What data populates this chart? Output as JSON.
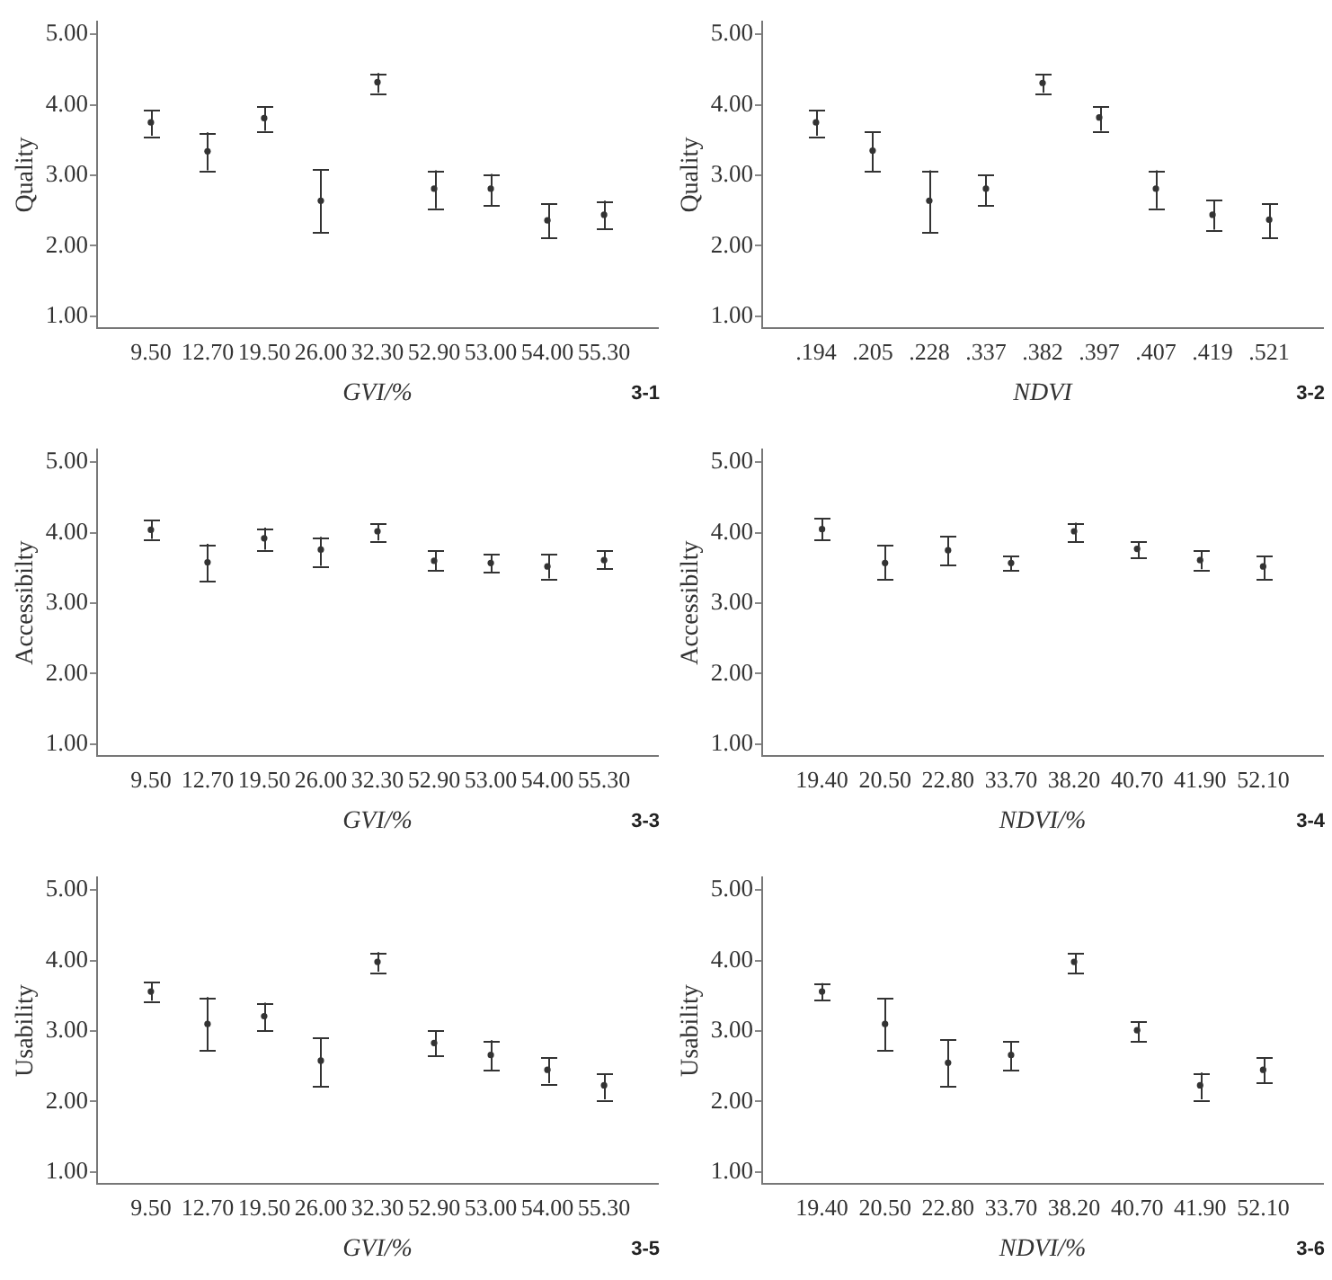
{
  "chart_data": [
    {
      "type": "scatter",
      "categories": [
        "9.50",
        "12.70",
        "19.50",
        "26.00",
        "32.30",
        "52.90",
        "53.00",
        "54.00",
        "55.30"
      ],
      "values": [
        3.75,
        3.34,
        3.81,
        2.64,
        4.32,
        2.81,
        2.81,
        2.36,
        2.44
      ],
      "errors": [
        [
          3.56,
          3.93
        ],
        [
          3.07,
          3.61
        ],
        [
          3.63,
          3.98
        ],
        [
          2.19,
          3.08
        ],
        [
          4.17,
          4.45
        ],
        [
          2.53,
          3.07
        ],
        [
          2.58,
          3.02
        ],
        [
          2.11,
          2.6
        ],
        [
          2.24,
          2.64
        ]
      ],
      "color": "#333333",
      "ylim": [
        0.83,
        5.18
      ],
      "yticks": [
        {
          "value": 1,
          "label": "1.00"
        },
        {
          "value": 2,
          "label": "2.00"
        },
        {
          "value": 3,
          "label": "3.00"
        },
        {
          "value": 4,
          "label": "4.00"
        },
        {
          "value": 5,
          "label": "5.00"
        }
      ],
      "xlabel": "GVI/%",
      "ylabel": "Quality",
      "annotations": [
        "3-1"
      ],
      "marker": "circle",
      "grid": false,
      "legend": false
    },
    {
      "type": "scatter",
      "categories": [
        ".194",
        ".205",
        ".228",
        ".337",
        ".382",
        ".397",
        ".407",
        ".419",
        ".521"
      ],
      "values": [
        3.75,
        3.35,
        2.64,
        2.81,
        4.31,
        3.82,
        2.81,
        2.44,
        2.37
      ],
      "errors": [
        [
          3.56,
          3.93
        ],
        [
          3.06,
          3.62
        ],
        [
          2.19,
          3.07
        ],
        [
          2.58,
          3.01
        ],
        [
          4.17,
          4.44
        ],
        [
          3.63,
          3.98
        ],
        [
          2.53,
          3.07
        ],
        [
          2.23,
          2.65
        ],
        [
          2.12,
          2.6
        ]
      ],
      "color": "#333333",
      "ylim": [
        0.83,
        5.18
      ],
      "yticks": [
        {
          "value": 1,
          "label": "1.00"
        },
        {
          "value": 2,
          "label": "2.00"
        },
        {
          "value": 3,
          "label": "3.00"
        },
        {
          "value": 4,
          "label": "4.00"
        },
        {
          "value": 5,
          "label": "5.00"
        }
      ],
      "xlabel": "NDVI",
      "ylabel": "Quality",
      "annotations": [
        "3-2"
      ],
      "marker": "circle",
      "grid": false,
      "legend": false
    },
    {
      "type": "scatter",
      "categories": [
        "9.50",
        "12.70",
        "19.50",
        "26.00",
        "32.30",
        "52.90",
        "53.00",
        "54.00",
        "55.30"
      ],
      "values": [
        4.04,
        3.58,
        3.92,
        3.76,
        4.02,
        3.6,
        3.57,
        3.52,
        3.61
      ],
      "errors": [
        [
          3.91,
          4.18
        ],
        [
          3.32,
          3.84
        ],
        [
          3.76,
          4.07
        ],
        [
          3.53,
          3.94
        ],
        [
          3.89,
          4.13
        ],
        [
          3.47,
          3.74
        ],
        [
          3.44,
          3.7
        ],
        [
          3.35,
          3.69
        ],
        [
          3.49,
          3.74
        ]
      ],
      "color": "#333333",
      "ylim": [
        0.83,
        5.18
      ],
      "yticks": [
        {
          "value": 1,
          "label": "1.00"
        },
        {
          "value": 2,
          "label": "2.00"
        },
        {
          "value": 3,
          "label": "3.00"
        },
        {
          "value": 4,
          "label": "4.00"
        },
        {
          "value": 5,
          "label": "5.00"
        }
      ],
      "xlabel": "GVI/%",
      "ylabel": "Accessibilty",
      "annotations": [
        "3-3"
      ],
      "marker": "circle",
      "grid": false,
      "legend": false
    },
    {
      "type": "scatter",
      "categories": [
        "19.40",
        "20.50",
        "22.80",
        "33.70",
        "38.20",
        "40.70",
        "41.90",
        "52.10"
      ],
      "values": [
        4.05,
        3.57,
        3.75,
        3.57,
        4.02,
        3.77,
        3.61,
        3.52
      ],
      "errors": [
        [
          3.9,
          4.2
        ],
        [
          3.34,
          3.83
        ],
        [
          3.54,
          3.95
        ],
        [
          3.46,
          3.67
        ],
        [
          3.88,
          4.14
        ],
        [
          3.64,
          3.87
        ],
        [
          3.48,
          3.75
        ],
        [
          3.34,
          3.67
        ]
      ],
      "color": "#333333",
      "ylim": [
        0.83,
        5.18
      ],
      "yticks": [
        {
          "value": 1,
          "label": "1.00"
        },
        {
          "value": 2,
          "label": "2.00"
        },
        {
          "value": 3,
          "label": "3.00"
        },
        {
          "value": 4,
          "label": "4.00"
        },
        {
          "value": 5,
          "label": "5.00"
        }
      ],
      "xlabel": "NDVI/%",
      "ylabel": "Accessibilty",
      "annotations": [
        "3-4"
      ],
      "marker": "circle",
      "grid": false,
      "legend": false
    },
    {
      "type": "scatter",
      "categories": [
        "9.50",
        "12.70",
        "19.50",
        "26.00",
        "32.30",
        "52.90",
        "53.00",
        "54.00",
        "55.30"
      ],
      "values": [
        3.56,
        3.1,
        3.21,
        2.58,
        3.98,
        2.83,
        2.66,
        2.45,
        2.23
      ],
      "errors": [
        [
          3.43,
          3.7
        ],
        [
          2.73,
          3.48
        ],
        [
          3.01,
          3.4
        ],
        [
          2.22,
          2.9
        ],
        [
          3.84,
          4.12
        ],
        [
          2.65,
          3.0
        ],
        [
          2.44,
          2.87
        ],
        [
          2.26,
          2.63
        ],
        [
          2.03,
          2.4
        ]
      ],
      "color": "#333333",
      "ylim": [
        0.83,
        5.18
      ],
      "yticks": [
        {
          "value": 1,
          "label": "1.00"
        },
        {
          "value": 2,
          "label": "2.00"
        },
        {
          "value": 3,
          "label": "3.00"
        },
        {
          "value": 4,
          "label": "4.00"
        },
        {
          "value": 5,
          "label": "5.00"
        }
      ],
      "xlabel": "GVI/%",
      "ylabel": "Usability",
      "annotations": [
        "3-5"
      ],
      "marker": "circle",
      "grid": false,
      "legend": false
    },
    {
      "type": "scatter",
      "categories": [
        "19.40",
        "20.50",
        "22.80",
        "33.70",
        "38.20",
        "40.70",
        "41.90",
        "52.10"
      ],
      "values": [
        3.56,
        3.1,
        2.55,
        2.66,
        3.98,
        3.01,
        2.23,
        2.45
      ],
      "errors": [
        [
          3.44,
          3.68
        ],
        [
          2.73,
          3.47
        ],
        [
          2.21,
          2.88
        ],
        [
          2.44,
          2.86
        ],
        [
          3.83,
          4.11
        ],
        [
          2.86,
          3.13
        ],
        [
          2.03,
          2.41
        ],
        [
          2.27,
          2.63
        ]
      ],
      "color": "#333333",
      "ylim": [
        0.83,
        5.18
      ],
      "yticks": [
        {
          "value": 1,
          "label": "1.00"
        },
        {
          "value": 2,
          "label": "2.00"
        },
        {
          "value": 3,
          "label": "3.00"
        },
        {
          "value": 4,
          "label": "4.00"
        },
        {
          "value": 5,
          "label": "5.00"
        }
      ],
      "xlabel": "NDVI/%",
      "ylabel": "Usability",
      "annotations": [
        "3-6"
      ],
      "marker": "circle",
      "grid": false,
      "legend": false
    }
  ]
}
